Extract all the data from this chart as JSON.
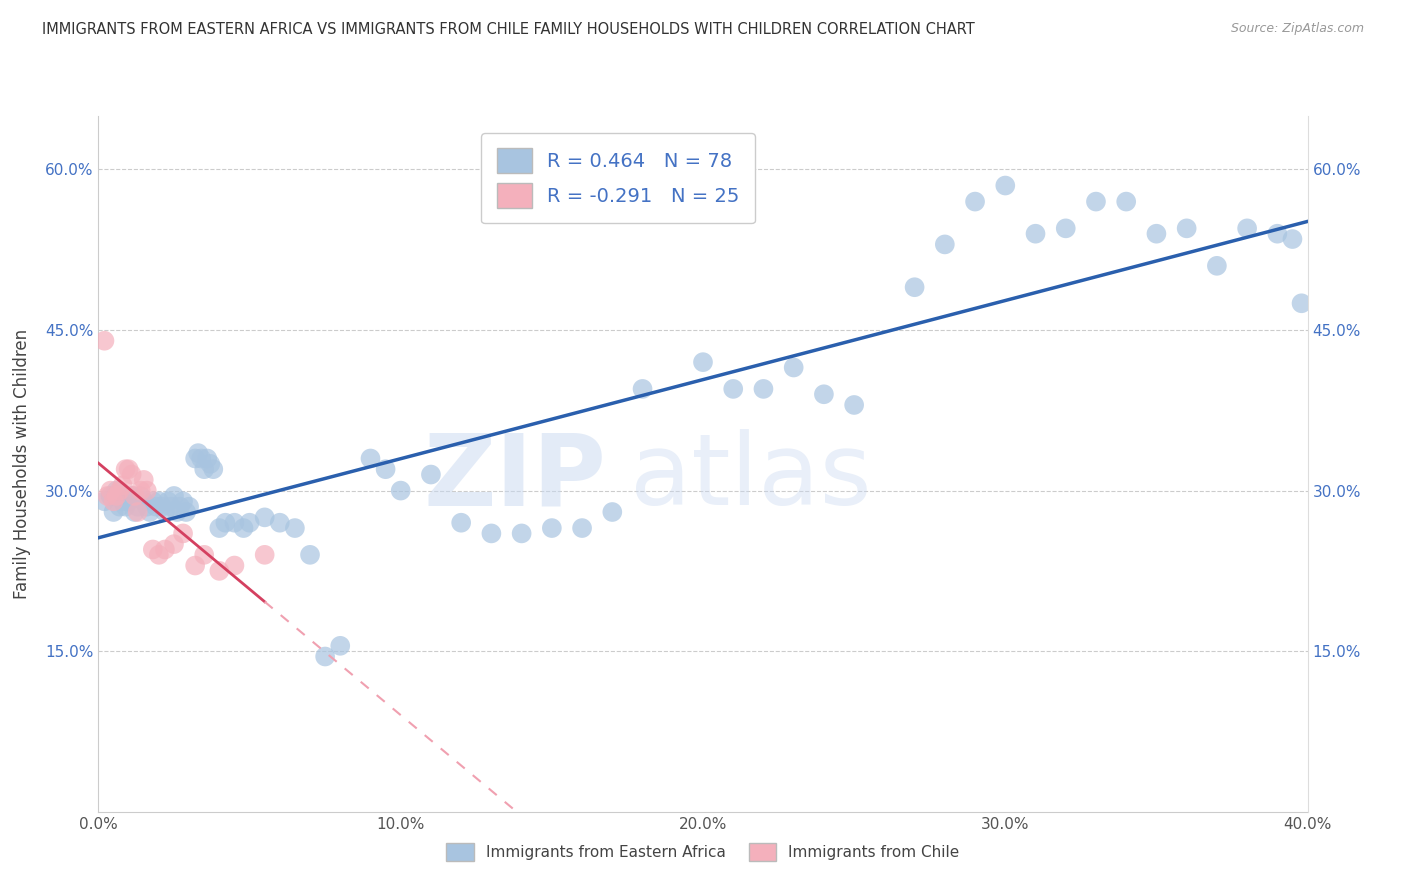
{
  "title": "IMMIGRANTS FROM EASTERN AFRICA VS IMMIGRANTS FROM CHILE FAMILY HOUSEHOLDS WITH CHILDREN CORRELATION CHART",
  "source": "Source: ZipAtlas.com",
  "ylabel": "Family Households with Children",
  "r_eastern_africa": 0.464,
  "n_eastern_africa": 78,
  "r_chile": -0.291,
  "n_chile": 25,
  "legend_label_1": "Immigrants from Eastern Africa",
  "legend_label_2": "Immigrants from Chile",
  "color_eastern_africa": "#a8c4e0",
  "color_chile": "#f4b0bc",
  "color_line_eastern_africa": "#2a5fad",
  "color_line_chile": "#d44060",
  "color_line_chile_dashed": "#f0a0b0",
  "background_color": "#ffffff",
  "xlim": [
    0,
    0.4
  ],
  "ylim": [
    0,
    0.65
  ],
  "xticks": [
    0.0,
    0.1,
    0.2,
    0.3,
    0.4
  ],
  "yticks": [
    0.0,
    0.15,
    0.3,
    0.45,
    0.6
  ],
  "eastern_africa_x": [
    0.002,
    0.004,
    0.005,
    0.006,
    0.007,
    0.008,
    0.009,
    0.01,
    0.011,
    0.012,
    0.013,
    0.014,
    0.015,
    0.016,
    0.017,
    0.018,
    0.019,
    0.02,
    0.021,
    0.022,
    0.023,
    0.024,
    0.025,
    0.026,
    0.027,
    0.028,
    0.029,
    0.03,
    0.032,
    0.033,
    0.034,
    0.035,
    0.036,
    0.037,
    0.038,
    0.04,
    0.042,
    0.045,
    0.048,
    0.05,
    0.055,
    0.06,
    0.065,
    0.07,
    0.075,
    0.08,
    0.09,
    0.095,
    0.1,
    0.11,
    0.12,
    0.13,
    0.14,
    0.15,
    0.16,
    0.17,
    0.18,
    0.2,
    0.21,
    0.22,
    0.23,
    0.24,
    0.25,
    0.27,
    0.28,
    0.29,
    0.3,
    0.31,
    0.32,
    0.33,
    0.34,
    0.35,
    0.36,
    0.37,
    0.38,
    0.39,
    0.395,
    0.398
  ],
  "eastern_africa_y": [
    0.29,
    0.295,
    0.28,
    0.3,
    0.285,
    0.29,
    0.285,
    0.29,
    0.295,
    0.28,
    0.285,
    0.295,
    0.29,
    0.285,
    0.28,
    0.29,
    0.285,
    0.29,
    0.285,
    0.28,
    0.29,
    0.285,
    0.295,
    0.28,
    0.285,
    0.29,
    0.28,
    0.285,
    0.33,
    0.335,
    0.33,
    0.32,
    0.33,
    0.325,
    0.32,
    0.265,
    0.27,
    0.27,
    0.265,
    0.27,
    0.275,
    0.27,
    0.265,
    0.24,
    0.145,
    0.155,
    0.33,
    0.32,
    0.3,
    0.315,
    0.27,
    0.26,
    0.26,
    0.265,
    0.265,
    0.28,
    0.395,
    0.42,
    0.395,
    0.395,
    0.415,
    0.39,
    0.38,
    0.49,
    0.53,
    0.57,
    0.585,
    0.54,
    0.545,
    0.57,
    0.57,
    0.54,
    0.545,
    0.51,
    0.545,
    0.54,
    0.535,
    0.475
  ],
  "chile_x": [
    0.002,
    0.003,
    0.004,
    0.005,
    0.006,
    0.007,
    0.008,
    0.009,
    0.01,
    0.011,
    0.012,
    0.013,
    0.014,
    0.015,
    0.016,
    0.018,
    0.02,
    0.022,
    0.025,
    0.028,
    0.032,
    0.035,
    0.04,
    0.045,
    0.055
  ],
  "chile_y": [
    0.44,
    0.295,
    0.3,
    0.29,
    0.295,
    0.3,
    0.305,
    0.32,
    0.32,
    0.315,
    0.295,
    0.28,
    0.3,
    0.31,
    0.3,
    0.245,
    0.24,
    0.245,
    0.25,
    0.26,
    0.23,
    0.24,
    0.225,
    0.23,
    0.24
  ]
}
